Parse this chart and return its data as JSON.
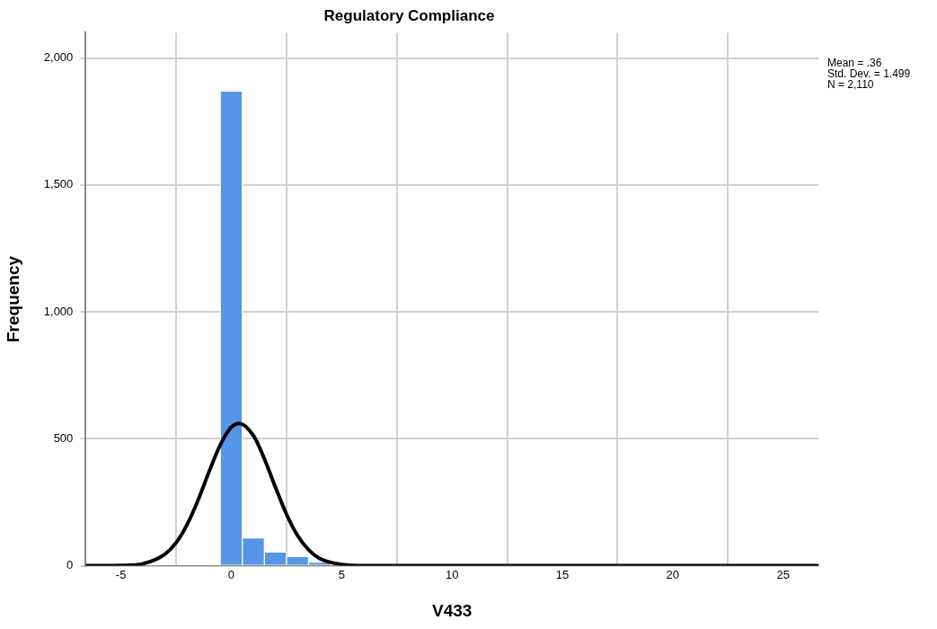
{
  "chart_data": {
    "type": "histogram",
    "title": "Regulatory Compliance",
    "xlabel": "V433",
    "ylabel": "Frequency",
    "bins": [
      -0.5,
      0.5,
      1.5,
      2.5,
      3.5,
      4.5
    ],
    "series": [
      {
        "type": "histogram",
        "color": "#5596e6",
        "values": [
          1870,
          110,
          54,
          36,
          14
        ]
      },
      {
        "type": "line",
        "color": "#000000",
        "x": [
          -6.6,
          -6,
          -5,
          -4,
          -3,
          -2.5,
          -2,
          -1.5,
          -1,
          -0.5,
          0,
          0.36,
          1,
          1.5,
          2,
          2.5,
          3,
          3.5,
          4,
          5,
          6,
          7,
          26.6
        ],
        "values": [
          0,
          0,
          1,
          8,
          46,
          91,
          163,
          260,
          372,
          476,
          546,
          561,
          513,
          421,
          309,
          203,
          119,
          63,
          29,
          5,
          0,
          0,
          0
        ]
      }
    ],
    "xlim": [
      -6.6,
      26.6
    ],
    "xticks": [
      -5,
      0,
      5,
      10,
      15,
      20,
      25
    ],
    "ylim": [
      0,
      2100
    ],
    "yticks": [
      0,
      {
        "value": 500,
        "label": "500"
      },
      {
        "value": 1000,
        "label": "1,000"
      },
      {
        "value": 1500,
        "label": "1,500"
      },
      {
        "value": 2000,
        "label": "2,000"
      }
    ],
    "grid": true,
    "legend": false,
    "marker": "none",
    "line_style": "solid",
    "annotations": [
      "Mean = .36",
      "Std. Dev. = 1.499",
      "N = 2,110"
    ]
  }
}
